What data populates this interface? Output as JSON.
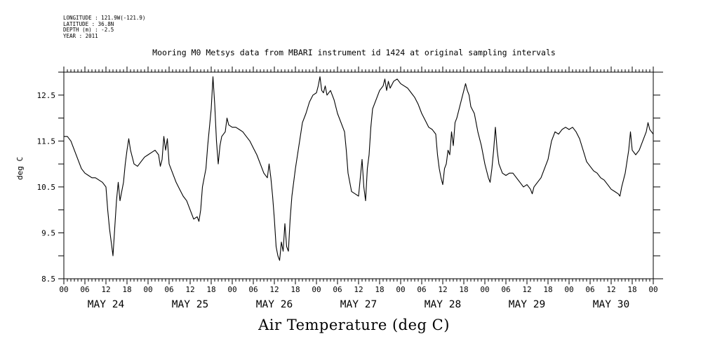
{
  "meta": {
    "longitude": "LONGITUDE : 121.9W(-121.9)",
    "latitude": "LATITUDE : 36.8N",
    "depth": "DEPTH (m) : -2.5",
    "year": "YEAR : 2011"
  },
  "chart_data": {
    "type": "line",
    "title": "Mooring M0 Metsys data from MBARI instrument id 1424 at original sampling intervals",
    "xlabel": "Air Temperature (deg C)",
    "ylabel": "deg C",
    "ylim": [
      8.5,
      13.0
    ],
    "yticks": [
      8.5,
      9.5,
      10.5,
      11.5,
      12.5
    ],
    "yticklabels": [
      "8.5",
      "9.5",
      "10.5",
      "11.5",
      "12.5"
    ],
    "xlim_hours": [
      0,
      168
    ],
    "hour_tick_labels": [
      "00",
      "06",
      "12",
      "18",
      "00",
      "06",
      "12",
      "18",
      "00",
      "06",
      "12",
      "18",
      "00",
      "06",
      "12",
      "18",
      "00",
      "06",
      "12",
      "18",
      "00",
      "06",
      "12",
      "18",
      "00",
      "06",
      "12",
      "18",
      "00"
    ],
    "day_labels": [
      "MAY 24",
      "MAY 25",
      "MAY 26",
      "MAY 27",
      "MAY 28",
      "MAY 29",
      "MAY 30"
    ],
    "grid": false,
    "series": [
      {
        "color": "#000000",
        "points": [
          [
            0.0,
            11.6
          ],
          [
            1.0,
            11.6
          ],
          [
            2.0,
            11.5
          ],
          [
            3.0,
            11.3
          ],
          [
            4.0,
            11.1
          ],
          [
            5.0,
            10.9
          ],
          [
            6.0,
            10.8
          ],
          [
            7.0,
            10.75
          ],
          [
            8.0,
            10.7
          ],
          [
            9.0,
            10.7
          ],
          [
            10.0,
            10.65
          ],
          [
            11.0,
            10.6
          ],
          [
            12.0,
            10.5
          ],
          [
            12.5,
            10.0
          ],
          [
            13.0,
            9.6
          ],
          [
            13.5,
            9.3
          ],
          [
            14.0,
            9.0
          ],
          [
            14.5,
            9.6
          ],
          [
            15.0,
            10.2
          ],
          [
            15.5,
            10.6
          ],
          [
            16.0,
            10.2
          ],
          [
            16.5,
            10.4
          ],
          [
            17.0,
            10.6
          ],
          [
            17.5,
            11.0
          ],
          [
            18.0,
            11.3
          ],
          [
            18.5,
            11.55
          ],
          [
            19.0,
            11.3
          ],
          [
            20.0,
            11.0
          ],
          [
            21.0,
            10.95
          ],
          [
            22.0,
            11.05
          ],
          [
            23.0,
            11.15
          ],
          [
            24.0,
            11.2
          ],
          [
            25.0,
            11.25
          ],
          [
            26.0,
            11.3
          ],
          [
            27.0,
            11.2
          ],
          [
            27.5,
            10.95
          ],
          [
            28.0,
            11.1
          ],
          [
            28.5,
            11.6
          ],
          [
            29.0,
            11.3
          ],
          [
            29.5,
            11.55
          ],
          [
            30.0,
            11.0
          ],
          [
            31.0,
            10.8
          ],
          [
            32.0,
            10.6
          ],
          [
            33.0,
            10.45
          ],
          [
            34.0,
            10.3
          ],
          [
            35.0,
            10.2
          ],
          [
            36.0,
            10.0
          ],
          [
            37.0,
            9.8
          ],
          [
            38.0,
            9.85
          ],
          [
            38.5,
            9.75
          ],
          [
            39.0,
            10.0
          ],
          [
            39.5,
            10.5
          ],
          [
            40.0,
            10.7
          ],
          [
            40.5,
            10.9
          ],
          [
            41.0,
            11.4
          ],
          [
            41.5,
            11.8
          ],
          [
            42.0,
            12.2
          ],
          [
            42.5,
            12.9
          ],
          [
            43.0,
            12.3
          ],
          [
            43.5,
            11.5
          ],
          [
            44.0,
            11.0
          ],
          [
            44.5,
            11.4
          ],
          [
            45.0,
            11.6
          ],
          [
            46.0,
            11.7
          ],
          [
            46.5,
            12.0
          ],
          [
            47.0,
            11.85
          ],
          [
            48.0,
            11.8
          ],
          [
            49.0,
            11.8
          ],
          [
            50.0,
            11.75
          ],
          [
            51.0,
            11.7
          ],
          [
            52.0,
            11.6
          ],
          [
            53.0,
            11.5
          ],
          [
            54.0,
            11.35
          ],
          [
            55.0,
            11.2
          ],
          [
            56.0,
            11.0
          ],
          [
            57.0,
            10.8
          ],
          [
            58.0,
            10.7
          ],
          [
            58.5,
            11.0
          ],
          [
            59.0,
            10.7
          ],
          [
            59.5,
            10.3
          ],
          [
            60.0,
            9.8
          ],
          [
            60.5,
            9.2
          ],
          [
            61.0,
            9.0
          ],
          [
            61.5,
            8.9
          ],
          [
            62.0,
            9.3
          ],
          [
            62.5,
            9.1
          ],
          [
            63.0,
            9.7
          ],
          [
            63.5,
            9.2
          ],
          [
            64.0,
            9.1
          ],
          [
            64.5,
            9.8
          ],
          [
            65.0,
            10.3
          ],
          [
            66.0,
            10.9
          ],
          [
            67.0,
            11.4
          ],
          [
            68.0,
            11.9
          ],
          [
            69.0,
            12.1
          ],
          [
            70.0,
            12.35
          ],
          [
            71.0,
            12.5
          ],
          [
            72.0,
            12.55
          ],
          [
            72.5,
            12.7
          ],
          [
            73.0,
            12.9
          ],
          [
            73.5,
            12.6
          ],
          [
            74.0,
            12.55
          ],
          [
            74.5,
            12.7
          ],
          [
            75.0,
            12.5
          ],
          [
            76.0,
            12.6
          ],
          [
            77.0,
            12.4
          ],
          [
            78.0,
            12.1
          ],
          [
            79.0,
            11.9
          ],
          [
            80.0,
            11.7
          ],
          [
            80.5,
            11.3
          ],
          [
            81.0,
            10.8
          ],
          [
            81.5,
            10.6
          ],
          [
            82.0,
            10.4
          ],
          [
            83.0,
            10.35
          ],
          [
            84.0,
            10.3
          ],
          [
            85.0,
            11.1
          ],
          [
            85.5,
            10.5
          ],
          [
            86.0,
            10.2
          ],
          [
            86.5,
            10.9
          ],
          [
            87.0,
            11.2
          ],
          [
            87.5,
            11.8
          ],
          [
            88.0,
            12.2
          ],
          [
            89.0,
            12.4
          ],
          [
            90.0,
            12.6
          ],
          [
            91.0,
            12.7
          ],
          [
            91.5,
            12.85
          ],
          [
            92.0,
            12.6
          ],
          [
            92.5,
            12.8
          ],
          [
            93.0,
            12.65
          ],
          [
            94.0,
            12.8
          ],
          [
            95.0,
            12.85
          ],
          [
            96.0,
            12.75
          ],
          [
            97.0,
            12.7
          ],
          [
            98.0,
            12.65
          ],
          [
            99.0,
            12.55
          ],
          [
            100.0,
            12.45
          ],
          [
            101.0,
            12.3
          ],
          [
            102.0,
            12.1
          ],
          [
            103.0,
            11.95
          ],
          [
            104.0,
            11.8
          ],
          [
            105.0,
            11.75
          ],
          [
            106.0,
            11.65
          ],
          [
            106.5,
            11.2
          ],
          [
            107.0,
            10.9
          ],
          [
            107.5,
            10.7
          ],
          [
            108.0,
            10.55
          ],
          [
            108.5,
            10.9
          ],
          [
            109.0,
            11.0
          ],
          [
            109.5,
            11.3
          ],
          [
            110.0,
            11.2
          ],
          [
            110.5,
            11.7
          ],
          [
            111.0,
            11.4
          ],
          [
            111.5,
            11.9
          ],
          [
            112.0,
            12.0
          ],
          [
            113.0,
            12.3
          ],
          [
            114.0,
            12.6
          ],
          [
            114.5,
            12.75
          ],
          [
            115.0,
            12.6
          ],
          [
            115.5,
            12.5
          ],
          [
            116.0,
            12.25
          ],
          [
            117.0,
            12.1
          ],
          [
            118.0,
            11.7
          ],
          [
            119.0,
            11.4
          ],
          [
            120.0,
            11.0
          ],
          [
            121.0,
            10.7
          ],
          [
            121.5,
            10.6
          ],
          [
            122.0,
            10.9
          ],
          [
            122.5,
            11.3
          ],
          [
            123.0,
            11.8
          ],
          [
            123.5,
            11.3
          ],
          [
            124.0,
            11.0
          ],
          [
            125.0,
            10.8
          ],
          [
            126.0,
            10.75
          ],
          [
            127.0,
            10.8
          ],
          [
            128.0,
            10.8
          ],
          [
            129.0,
            10.7
          ],
          [
            130.0,
            10.6
          ],
          [
            131.0,
            10.5
          ],
          [
            132.0,
            10.55
          ],
          [
            133.0,
            10.45
          ],
          [
            133.5,
            10.35
          ],
          [
            134.0,
            10.5
          ],
          [
            135.0,
            10.6
          ],
          [
            136.0,
            10.7
          ],
          [
            137.0,
            10.9
          ],
          [
            138.0,
            11.1
          ],
          [
            138.5,
            11.3
          ],
          [
            139.0,
            11.5
          ],
          [
            140.0,
            11.7
          ],
          [
            141.0,
            11.65
          ],
          [
            142.0,
            11.75
          ],
          [
            143.0,
            11.8
          ],
          [
            144.0,
            11.75
          ],
          [
            145.0,
            11.8
          ],
          [
            146.0,
            11.7
          ],
          [
            147.0,
            11.55
          ],
          [
            148.0,
            11.3
          ],
          [
            149.0,
            11.05
          ],
          [
            150.0,
            10.95
          ],
          [
            151.0,
            10.85
          ],
          [
            152.0,
            10.8
          ],
          [
            153.0,
            10.7
          ],
          [
            154.0,
            10.65
          ],
          [
            155.0,
            10.55
          ],
          [
            156.0,
            10.45
          ],
          [
            157.0,
            10.4
          ],
          [
            158.0,
            10.35
          ],
          [
            158.5,
            10.3
          ],
          [
            159.0,
            10.5
          ],
          [
            160.0,
            10.8
          ],
          [
            161.0,
            11.3
          ],
          [
            161.5,
            11.7
          ],
          [
            162.0,
            11.3
          ],
          [
            163.0,
            11.2
          ],
          [
            164.0,
            11.3
          ],
          [
            165.0,
            11.5
          ],
          [
            166.0,
            11.7
          ],
          [
            166.5,
            11.9
          ],
          [
            167.0,
            11.75
          ],
          [
            167.5,
            11.7
          ],
          [
            168.0,
            11.65
          ]
        ]
      }
    ]
  }
}
